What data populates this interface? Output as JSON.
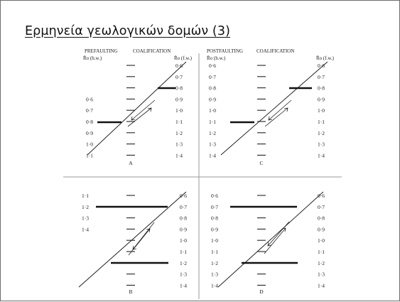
{
  "slide": {
    "title": "Ερμηνεία γεωλογικών δομών (3)"
  },
  "figure": {
    "headers": {
      "prefaulting": "PREFAULTING",
      "coalification_left": "COALIFICATION",
      "postfaulting": "POSTFAULTING",
      "coalification_right": "COALIFICATION",
      "ro_hw": "R̄o (h.w.)",
      "ro_fw": "R̄o (f.w.)"
    },
    "panels": [
      {
        "letter": "A",
        "left_values": [
          "0·6",
          "0·7",
          "0·8",
          "0·9",
          "1·0",
          "1·1"
        ],
        "right_values": [
          "0·6",
          "0·7",
          "0·8",
          "0·9",
          "1·0",
          "1·1",
          "1·2",
          "1·3",
          "1·4"
        ]
      },
      {
        "letter": "C",
        "left_values": [
          "0·6",
          "0·7",
          "0·8",
          "0·9",
          "1·0",
          "1·1",
          "1·2",
          "1·3",
          "1·4"
        ],
        "right_values": [
          "0·6",
          "0·7",
          "0·8",
          "0·9",
          "1·0",
          "1·1",
          "1·2",
          "1·3",
          "1·4"
        ]
      },
      {
        "letter": "B",
        "left_values": [
          "1·1",
          "1·2",
          "1·3",
          "1·4"
        ],
        "right_values": [
          "0·6",
          "0·7",
          "0·8",
          "0·9",
          "1·0",
          "1·1",
          "1·2",
          "1·3",
          "1·4"
        ]
      },
      {
        "letter": "D",
        "left_values": [
          "0·6",
          "0·7",
          "0·8",
          "0·9",
          "1·0",
          "1·1",
          "1·2",
          "1·3",
          "1·4"
        ],
        "right_values": [
          "0·6",
          "0·7",
          "0·8",
          "0·9",
          "1·0",
          "1·1",
          "1·2",
          "1·3",
          "1·4"
        ]
      }
    ]
  }
}
